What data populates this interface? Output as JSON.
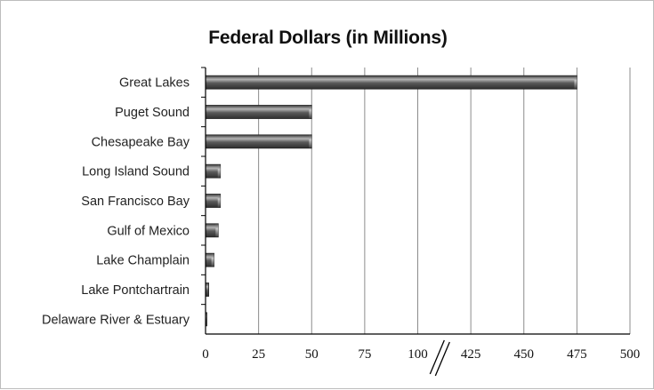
{
  "chart_data": {
    "type": "bar",
    "orientation": "horizontal",
    "title": "Federal Dollars (in Millions)",
    "xlabel": "",
    "ylabel": "",
    "categories": [
      "Great Lakes",
      "Puget Sound",
      "Chesapeake Bay",
      "Long Island Sound",
      "San Francisco Bay",
      "Gulf of Mexico",
      "Lake Champlain",
      "Lake Pontchartrain",
      "Delaware River & Estuary"
    ],
    "values": [
      475,
      50,
      50,
      7,
      7,
      6,
      4,
      1.5,
      0.5
    ],
    "xticks": [
      "0",
      "25",
      "50",
      "75",
      "100",
      "425",
      "450",
      "475",
      "500"
    ],
    "axis_break": {
      "from": 100,
      "to": 425
    },
    "xlim": [
      0,
      500
    ],
    "grid": "vertical",
    "legend": "none",
    "colors": {
      "bar": "#4f4f4f",
      "bar_highlight": "#b4b4b4",
      "grid": "#8c8c8c",
      "axis": "#000000"
    }
  }
}
